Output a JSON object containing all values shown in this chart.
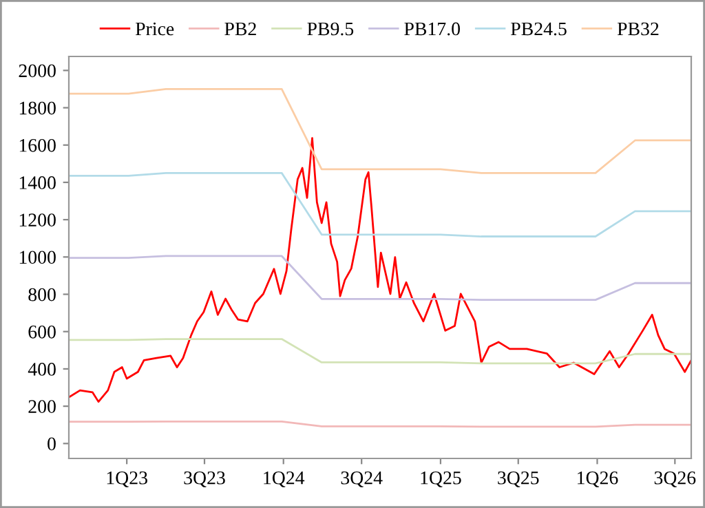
{
  "chart_data": {
    "type": "line",
    "xlim": [
      "2022-08-19",
      "2026-08-08"
    ],
    "ylim": [
      -80,
      2075
    ],
    "xticks": [
      {
        "value": "2023-01-01",
        "label": "1Q23"
      },
      {
        "value": "2023-07-01",
        "label": "3Q23"
      },
      {
        "value": "2024-01-01",
        "label": "1Q24"
      },
      {
        "value": "2024-07-01",
        "label": "3Q24"
      },
      {
        "value": "2025-01-01",
        "label": "1Q25"
      },
      {
        "value": "2025-07-01",
        "label": "3Q25"
      },
      {
        "value": "2026-01-01",
        "label": "1Q26"
      },
      {
        "value": "2026-07-01",
        "label": "3Q26"
      }
    ],
    "yticks": [
      0,
      200,
      400,
      600,
      800,
      1000,
      1200,
      1400,
      1600,
      1800,
      2000
    ],
    "grid": false,
    "legend": "top",
    "series": [
      {
        "name": "Price",
        "color": "#ff0000",
        "x": [
          "2022-08-19",
          "2022-09-14",
          "2022-10-13",
          "2022-10-27",
          "2022-11-18",
          "2022-12-03",
          "2022-12-21",
          "2023-01-01",
          "2023-01-27",
          "2023-02-10",
          "2023-03-11",
          "2023-04-13",
          "2023-04-28",
          "2023-05-12",
          "2023-05-31",
          "2023-06-14",
          "2023-06-29",
          "2023-07-17",
          "2023-08-01",
          "2023-08-19",
          "2023-09-03",
          "2023-09-17",
          "2023-10-09",
          "2023-10-27",
          "2023-11-15",
          "2023-12-10",
          "2023-12-25",
          "2024-01-08",
          "2024-01-19",
          "2024-02-03",
          "2024-02-14",
          "2024-02-25",
          "2024-03-08",
          "2024-03-19",
          "2024-03-30",
          "2024-04-10",
          "2024-04-21",
          "2024-05-05",
          "2024-05-12",
          "2024-05-23",
          "2024-06-07",
          "2024-06-22",
          "2024-07-10",
          "2024-07-17",
          "2024-07-24",
          "2024-08-08",
          "2024-08-15",
          "2024-09-06",
          "2024-09-17",
          "2024-09-28",
          "2024-10-13",
          "2024-10-31",
          "2024-11-22",
          "2024-12-17",
          "2025-01-12",
          "2025-02-03",
          "2025-02-17",
          "2025-03-22",
          "2025-04-06",
          "2025-04-24",
          "2025-05-16",
          "2025-06-11",
          "2025-07-21",
          "2025-09-06",
          "2025-10-05",
          "2025-11-07",
          "2025-12-25",
          "2026-01-30",
          "2026-02-21",
          "2026-03-15",
          "2026-04-17",
          "2026-05-09",
          "2026-05-23",
          "2026-06-07",
          "2026-06-29",
          "2026-07-24",
          "2026-08-08"
        ],
        "values": [
          248,
          285,
          275,
          224,
          285,
          384,
          409,
          348,
          384,
          446,
          458,
          470,
          409,
          458,
          581,
          655,
          704,
          815,
          690,
          776,
          714,
          665,
          655,
          753,
          802,
          936,
          802,
          925,
          1146,
          1416,
          1477,
          1317,
          1637,
          1293,
          1182,
          1293,
          1072,
          974,
          790,
          876,
          938,
          1109,
          1416,
          1454,
          1269,
          839,
          1023,
          802,
          999,
          777,
          864,
          753,
          655,
          802,
          605,
          630,
          802,
          655,
          433,
          519,
          544,
          507,
          507,
          482,
          409,
          433,
          372,
          495,
          409,
          482,
          605,
          690,
          581,
          507,
          482,
          384,
          446
        ]
      },
      {
        "name": "PB2",
        "color": "#f2b8b8",
        "x": [
          "2022-08-19",
          "2023-01-05",
          "2023-04-02",
          "2023-12-28",
          "2024-03-30",
          "2025-01-01",
          "2025-04-06",
          "2025-12-28",
          "2026-03-30",
          "2026-08-08"
        ],
        "values": [
          117,
          117,
          118,
          118,
          92,
          92,
          90,
          90,
          100,
          100
        ]
      },
      {
        "name": "PB9.5",
        "color": "#d3e3b6",
        "x": [
          "2022-08-19",
          "2023-01-05",
          "2023-04-02",
          "2023-12-28",
          "2024-03-30",
          "2025-01-01",
          "2025-04-06",
          "2025-12-28",
          "2026-03-30",
          "2026-08-08"
        ],
        "values": [
          555,
          555,
          560,
          560,
          435,
          435,
          430,
          430,
          480,
          480
        ]
      },
      {
        "name": "PB17.0",
        "color": "#c6bfe0",
        "x": [
          "2022-08-19",
          "2023-01-05",
          "2023-04-02",
          "2023-12-28",
          "2024-03-30",
          "2025-01-01",
          "2025-04-06",
          "2025-12-28",
          "2026-03-30",
          "2026-08-08"
        ],
        "values": [
          995,
          995,
          1005,
          1005,
          775,
          775,
          770,
          770,
          860,
          860
        ]
      },
      {
        "name": "PB24.5",
        "color": "#b2dbe8",
        "x": [
          "2022-08-19",
          "2023-01-05",
          "2023-04-02",
          "2023-12-28",
          "2024-03-30",
          "2025-01-01",
          "2025-04-06",
          "2025-12-28",
          "2026-03-30",
          "2026-08-08"
        ],
        "values": [
          1435,
          1435,
          1450,
          1450,
          1120,
          1120,
          1110,
          1110,
          1245,
          1245
        ]
      },
      {
        "name": "PB32",
        "color": "#fbcda5",
        "x": [
          "2022-08-19",
          "2023-01-05",
          "2023-04-02",
          "2023-12-28",
          "2024-03-30",
          "2025-01-01",
          "2025-04-06",
          "2025-12-28",
          "2026-03-30",
          "2026-08-08"
        ],
        "values": [
          1875,
          1875,
          1900,
          1900,
          1470,
          1470,
          1450,
          1450,
          1625,
          1625
        ]
      }
    ]
  }
}
